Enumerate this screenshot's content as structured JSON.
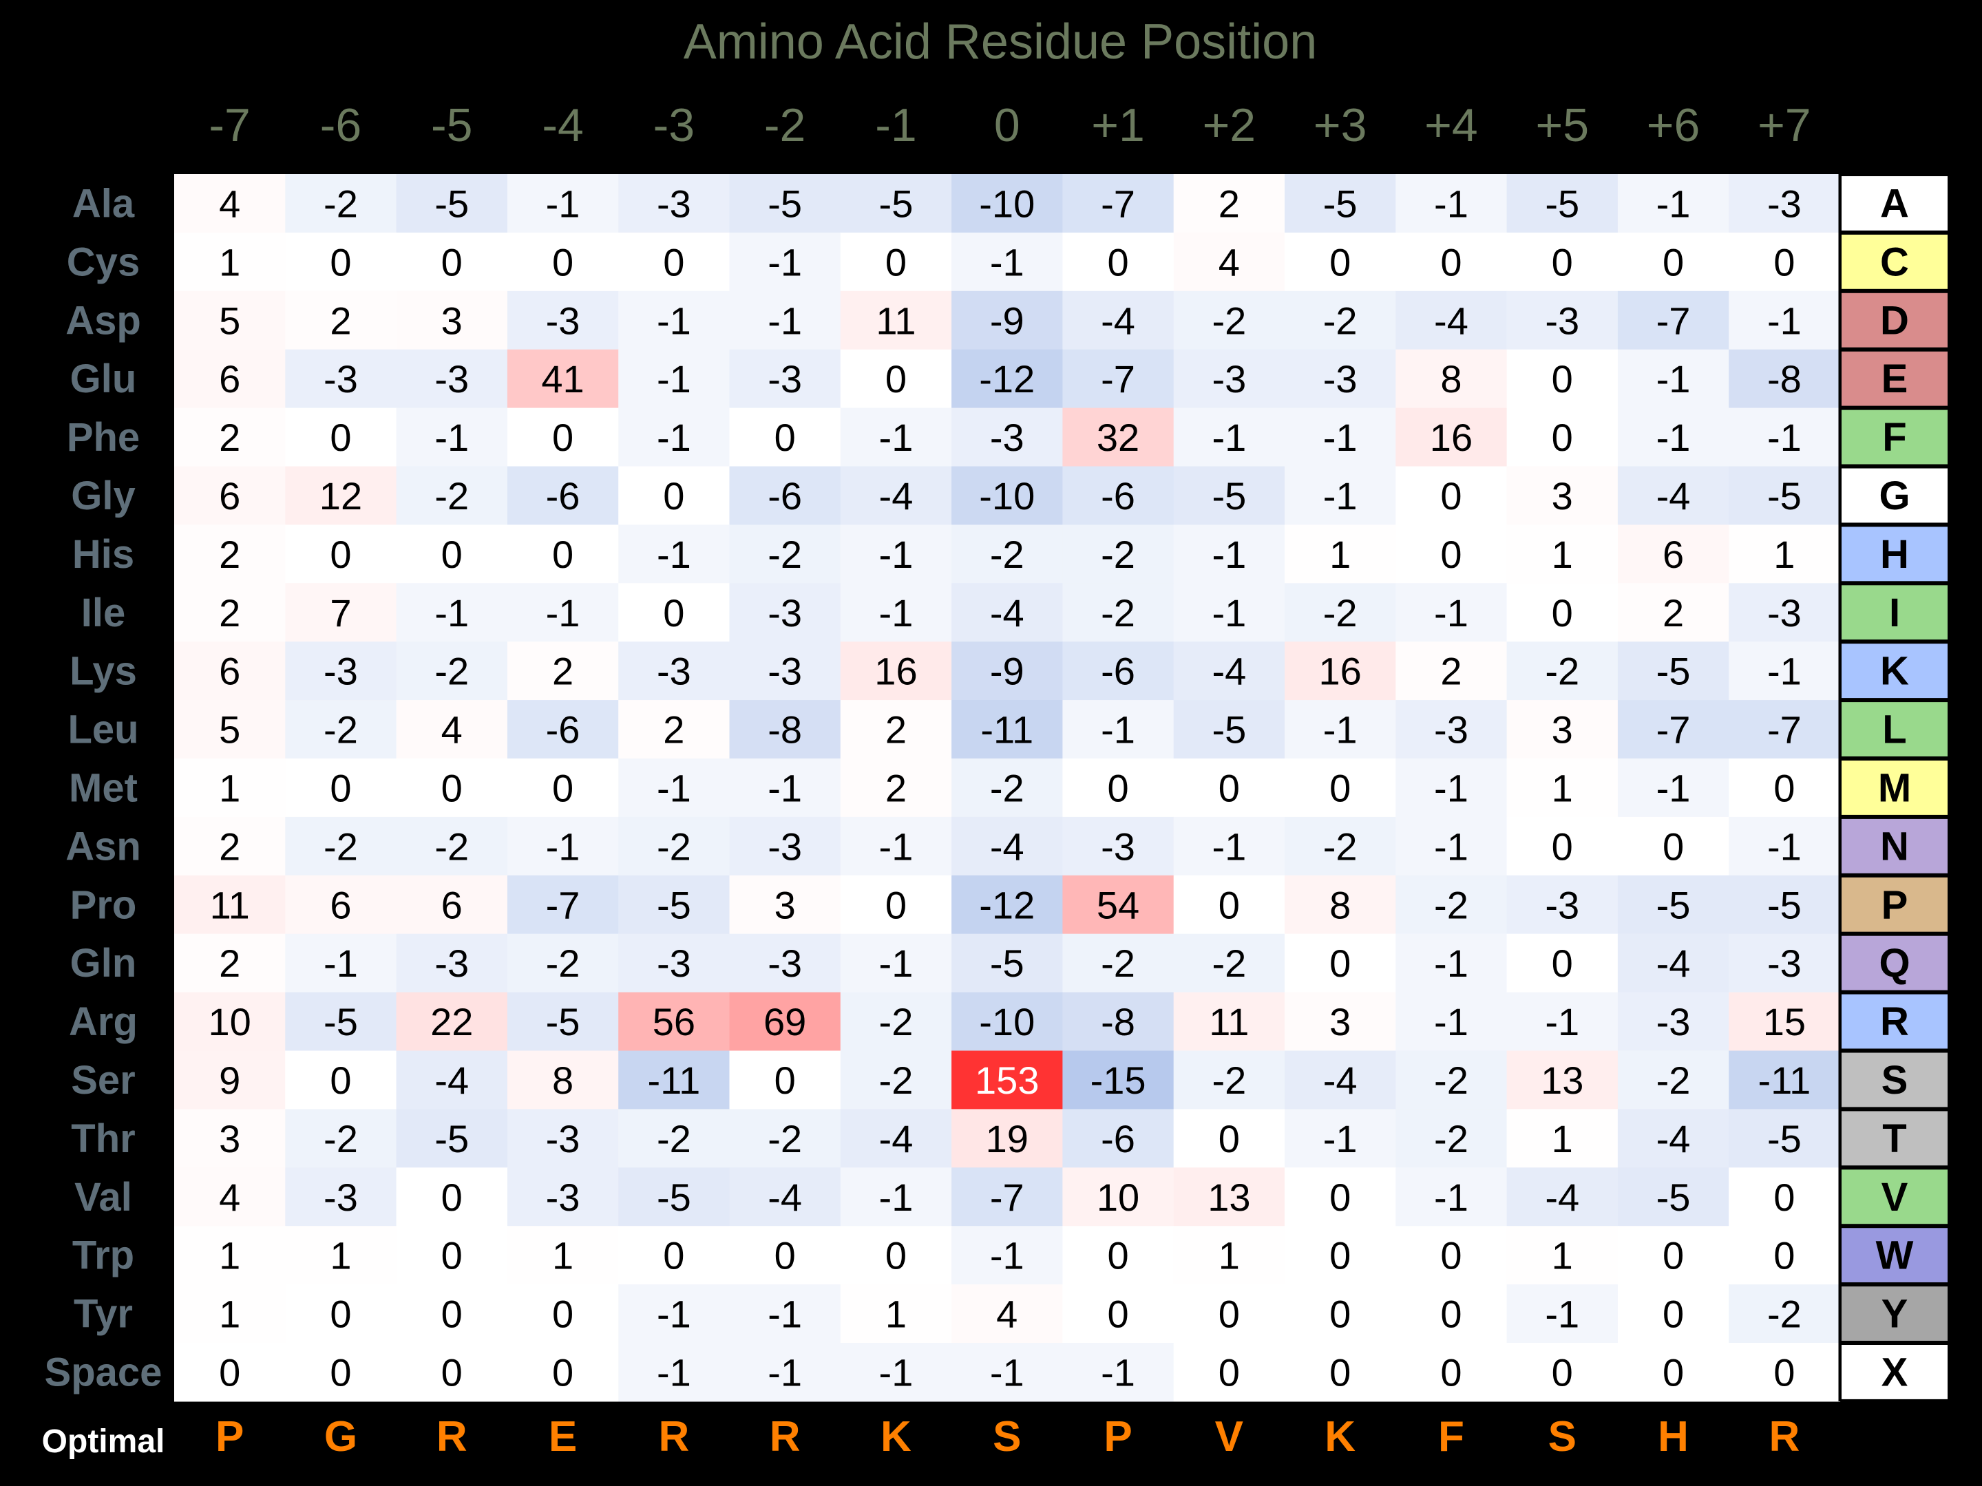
{
  "chart_data": {
    "type": "heatmap",
    "title": "Amino Acid Residue Position",
    "positions": [
      "-7",
      "-6",
      "-5",
      "-4",
      "-3",
      "-2",
      "-1",
      "0",
      "+1",
      "+2",
      "+3",
      "+4",
      "+5",
      "+6",
      "+7"
    ],
    "rows": [
      {
        "name": "Ala",
        "code": "A",
        "code_color": "#ffffff",
        "values": [
          4,
          -2,
          -5,
          -1,
          -3,
          -5,
          -5,
          -10,
          -7,
          2,
          -5,
          -1,
          -5,
          -1,
          -3
        ]
      },
      {
        "name": "Cys",
        "code": "C",
        "code_color": "#ffff99",
        "values": [
          1,
          0,
          0,
          0,
          0,
          -1,
          0,
          -1,
          0,
          4,
          0,
          0,
          0,
          0,
          0
        ]
      },
      {
        "name": "Asp",
        "code": "D",
        "code_color": "#d98c8c",
        "values": [
          5,
          2,
          3,
          -3,
          -1,
          -1,
          11,
          -9,
          -4,
          -2,
          -2,
          -4,
          -3,
          -7,
          -1
        ]
      },
      {
        "name": "Glu",
        "code": "E",
        "code_color": "#d98c8c",
        "values": [
          6,
          -3,
          -3,
          41,
          -1,
          -3,
          0,
          -12,
          -7,
          -3,
          -3,
          8,
          0,
          -1,
          -8
        ]
      },
      {
        "name": "Phe",
        "code": "F",
        "code_color": "#99d98c",
        "values": [
          2,
          0,
          -1,
          0,
          -1,
          0,
          -1,
          -3,
          32,
          -1,
          -1,
          16,
          0,
          -1,
          -1
        ]
      },
      {
        "name": "Gly",
        "code": "G",
        "code_color": "#ffffff",
        "values": [
          6,
          12,
          -2,
          -6,
          0,
          -6,
          -4,
          -10,
          -6,
          -5,
          -1,
          0,
          3,
          -4,
          -5
        ]
      },
      {
        "name": "His",
        "code": "H",
        "code_color": "#a8c4ff",
        "values": [
          2,
          0,
          0,
          0,
          -1,
          -2,
          -1,
          -2,
          -2,
          -1,
          1,
          0,
          1,
          6,
          1
        ]
      },
      {
        "name": "Ile",
        "code": "I",
        "code_color": "#99d98c",
        "values": [
          2,
          7,
          -1,
          -1,
          0,
          -3,
          -1,
          -4,
          -2,
          -1,
          -2,
          -1,
          0,
          2,
          -3
        ]
      },
      {
        "name": "Lys",
        "code": "K",
        "code_color": "#a8c4ff",
        "values": [
          6,
          -3,
          -2,
          2,
          -3,
          -3,
          16,
          -9,
          -6,
          -4,
          16,
          2,
          -2,
          -5,
          -1
        ]
      },
      {
        "name": "Leu",
        "code": "L",
        "code_color": "#99d98c",
        "values": [
          5,
          -2,
          4,
          -6,
          2,
          -8,
          2,
          -11,
          -1,
          -5,
          -1,
          -3,
          3,
          -7,
          -7
        ]
      },
      {
        "name": "Met",
        "code": "M",
        "code_color": "#ffff99",
        "values": [
          1,
          0,
          0,
          0,
          -1,
          -1,
          2,
          -2,
          0,
          0,
          0,
          -1,
          1,
          -1,
          0
        ]
      },
      {
        "name": "Asn",
        "code": "N",
        "code_color": "#b8a6d9",
        "values": [
          2,
          -2,
          -2,
          -1,
          -2,
          -3,
          -1,
          -4,
          -3,
          -1,
          -2,
          -1,
          0,
          0,
          -1
        ]
      },
      {
        "name": "Pro",
        "code": "P",
        "code_color": "#d9b88c",
        "values": [
          11,
          6,
          6,
          -7,
          -5,
          3,
          0,
          -12,
          54,
          0,
          8,
          -2,
          -3,
          -5,
          -5
        ]
      },
      {
        "name": "Gln",
        "code": "Q",
        "code_color": "#b8a6d9",
        "values": [
          2,
          -1,
          -3,
          -2,
          -3,
          -3,
          -1,
          -5,
          -2,
          -2,
          0,
          -1,
          0,
          -4,
          -3
        ]
      },
      {
        "name": "Arg",
        "code": "R",
        "code_color": "#a8c4ff",
        "values": [
          10,
          -5,
          22,
          -5,
          56,
          69,
          -2,
          -10,
          -8,
          11,
          3,
          -1,
          -1,
          -3,
          15
        ]
      },
      {
        "name": "Ser",
        "code": "S",
        "code_color": "#bfbfbf",
        "values": [
          9,
          0,
          -4,
          8,
          -11,
          0,
          -2,
          153,
          -15,
          -2,
          -4,
          -2,
          13,
          -2,
          -11
        ]
      },
      {
        "name": "Thr",
        "code": "T",
        "code_color": "#bfbfbf",
        "values": [
          3,
          -2,
          -5,
          -3,
          -2,
          -2,
          -4,
          19,
          -6,
          0,
          -1,
          -2,
          1,
          -4,
          -5
        ]
      },
      {
        "name": "Val",
        "code": "V",
        "code_color": "#99d98c",
        "values": [
          4,
          -3,
          0,
          -3,
          -5,
          -4,
          -1,
          -7,
          10,
          13,
          0,
          -1,
          -4,
          -5,
          0
        ]
      },
      {
        "name": "Trp",
        "code": "W",
        "code_color": "#9999e0",
        "values": [
          1,
          1,
          0,
          1,
          0,
          0,
          0,
          -1,
          0,
          1,
          0,
          0,
          1,
          0,
          0
        ]
      },
      {
        "name": "Tyr",
        "code": "Y",
        "code_color": "#a6a6a6",
        "values": [
          1,
          0,
          0,
          0,
          -1,
          -1,
          1,
          4,
          0,
          0,
          0,
          0,
          -1,
          0,
          -2
        ]
      },
      {
        "name": "Space",
        "code": "X",
        "code_color": "#ffffff",
        "values": [
          0,
          0,
          0,
          0,
          -1,
          -1,
          -1,
          -1,
          -1,
          0,
          0,
          0,
          0,
          0,
          0
        ]
      }
    ],
    "optimal_label": "Optimal",
    "optimal": [
      "P",
      "G",
      "R",
      "E",
      "R",
      "R",
      "K",
      "S",
      "P",
      "V",
      "K",
      "F",
      "S",
      "H",
      "R"
    ],
    "colors": {
      "background": "#000000",
      "title": "#6b7a5e",
      "position_labels": "#6b7a5e",
      "row_labels": "#5f6f7a",
      "optimal_label": "#ffffff",
      "optimal_residues": "#ff8000",
      "positive": "#ff3333",
      "negative": "#3366cc"
    }
  }
}
